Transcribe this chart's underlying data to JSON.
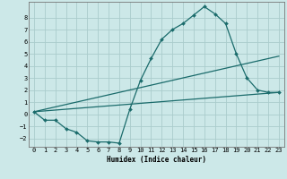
{
  "xlabel": "Humidex (Indice chaleur)",
  "bg_color": "#cce8e8",
  "grid_color": "#aacccc",
  "line_color": "#1a6b6b",
  "xlim": [
    -0.5,
    23.5
  ],
  "ylim": [
    -2.7,
    9.3
  ],
  "xticks": [
    0,
    1,
    2,
    3,
    4,
    5,
    6,
    7,
    8,
    9,
    10,
    11,
    12,
    13,
    14,
    15,
    16,
    17,
    18,
    19,
    20,
    21,
    22,
    23
  ],
  "yticks": [
    -2,
    -1,
    0,
    1,
    2,
    3,
    4,
    5,
    6,
    7,
    8
  ],
  "curve1_x": [
    0,
    1,
    2,
    3,
    4,
    5,
    6,
    7,
    8,
    9,
    10,
    11,
    12,
    13,
    14,
    15,
    16,
    17,
    18,
    19,
    20,
    21,
    22,
    23
  ],
  "curve1_y": [
    0.2,
    -0.5,
    -0.5,
    -1.2,
    -1.5,
    -2.2,
    -2.3,
    -2.3,
    -2.4,
    0.4,
    2.8,
    4.6,
    6.2,
    7.0,
    7.5,
    8.2,
    8.9,
    8.3,
    7.5,
    5.0,
    3.0,
    2.0,
    1.8,
    1.8
  ],
  "curve2_x": [
    0,
    23
  ],
  "curve2_y": [
    0.2,
    4.8
  ],
  "curve3_x": [
    0,
    23
  ],
  "curve3_y": [
    0.2,
    1.8
  ],
  "lw": 0.9,
  "ms": 2.0
}
